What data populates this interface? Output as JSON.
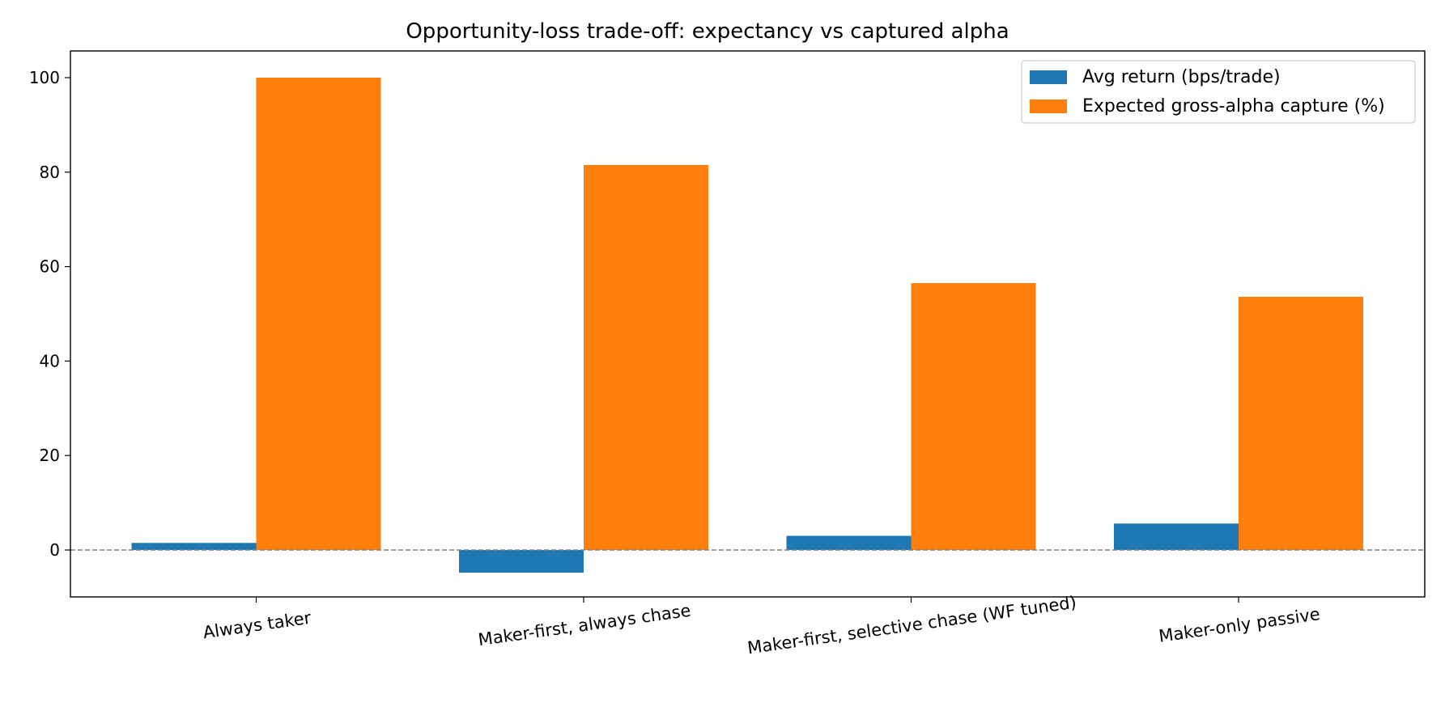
{
  "chart_data": {
    "type": "bar",
    "title": "Opportunity-loss trade-off: expectancy vs captured alpha",
    "xlabel": "",
    "ylabel": "",
    "categories": [
      "Always taker",
      "Maker-first, always chase",
      "Maker-first, selective chase (WF tuned)",
      "Maker-only passive"
    ],
    "series": [
      {
        "name": "Avg return (bps/trade)",
        "color": "#1f77b4",
        "values": [
          1.5,
          -4.8,
          3.0,
          5.6
        ]
      },
      {
        "name": "Expected gross-alpha capture (%)",
        "color": "#ff7f0e",
        "values": [
          100,
          81.5,
          56.5,
          53.6
        ]
      }
    ],
    "ylim": [
      -10,
      105
    ],
    "yticks": [
      0,
      20,
      40,
      60,
      80,
      100
    ],
    "zero_line": {
      "style": "dashed",
      "color": "#808080"
    },
    "grid": false,
    "legend_position": "top-right",
    "xtick_rotation_deg": -8
  }
}
